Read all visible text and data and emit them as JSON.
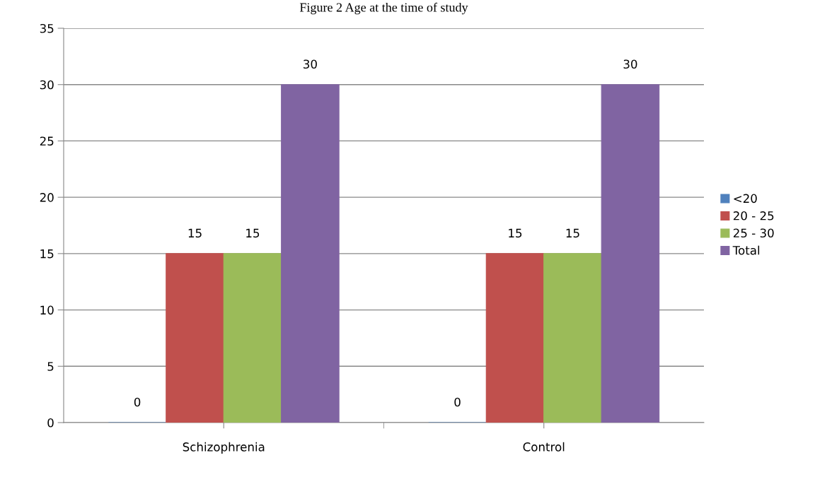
{
  "chart_data": {
    "type": "bar",
    "title": "Figure 2 Age at the time of study",
    "categories": [
      "Schizophrenia",
      "Control"
    ],
    "series": [
      {
        "name": "<20",
        "color": "#4f81bd",
        "values": [
          0,
          0
        ]
      },
      {
        "name": "20 - 25",
        "color": "#c0504d",
        "values": [
          15,
          15
        ]
      },
      {
        "name": "25 - 30",
        "color": "#9bbb59",
        "values": [
          15,
          15
        ]
      },
      {
        "name": "Total",
        "color": "#8064a2",
        "values": [
          30,
          30
        ]
      }
    ],
    "ylim": [
      0,
      35
    ],
    "yticks": [
      0,
      5,
      10,
      15,
      20,
      25,
      30,
      35
    ],
    "grid": "y",
    "legend": "right",
    "data_labels": true
  }
}
